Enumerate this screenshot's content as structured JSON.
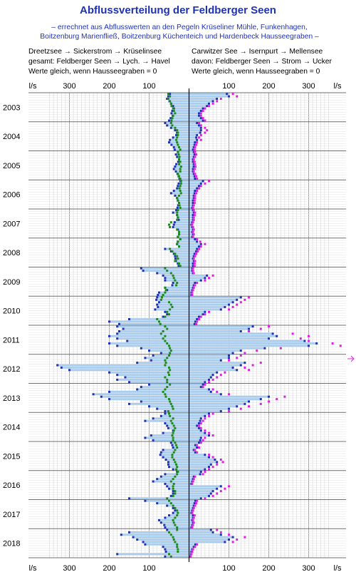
{
  "chart_data": {
    "type": "bar",
    "title": "Abflussverteilung der Feldberger Seen",
    "subtitle_lines": [
      "– errechnet aus Abflusswerten an den Pegeln Krüseliner Mühle, Funkenhagen,",
      "Boitzenburg Marienfließ, Boitzenburg Küchenteich und Hardenbeck Hausseegraben –"
    ],
    "legend_left": [
      {
        "text": "Dreetzsee → Sickerstrom → Krüselinsee",
        "color": "#1a8a1a"
      },
      {
        "text": "gesamt: Feldberger Seen → Lych. → Havel",
        "color": "#1f32b4"
      },
      {
        "text": "Werte gleich, wenn Hausseegraben = 0",
        "color": "#1f5f7a"
      }
    ],
    "legend_right": [
      {
        "text": "Carwitzer See → Isernpurt → Mellensee",
        "color": "#e020e0"
      },
      {
        "text": "davon: Feldberger Seen → Strom → Ucker",
        "color": "#1f32b4"
      },
      {
        "text": "Werte gleich, wenn Hausseegraben = 0",
        "color": "#4b10b4"
      }
    ],
    "axis_unit": "l/s",
    "x_tick_labels_left": [
      "300",
      "200",
      "100"
    ],
    "x_tick_values_left": [
      300,
      200,
      100
    ],
    "x_tick_labels_right": [
      "100",
      "200",
      "300"
    ],
    "x_tick_values_right": [
      100,
      200,
      300
    ],
    "xlim": [
      -350,
      350
    ],
    "years": [
      "2003",
      "2004",
      "2005",
      "2006",
      "2007",
      "2008",
      "2009",
      "2010",
      "2011",
      "2012",
      "2013",
      "2014",
      "2015",
      "2016",
      "2017",
      "2018"
    ],
    "months_per_year": 12,
    "grid": true,
    "colors": {
      "bar": "#a9cdee",
      "lych_total": "#1f32b4",
      "krueselinsee": "#1a8a1a",
      "mellensee": "#e020e0",
      "ucker": "#1f32b4",
      "equal_left": "#1f5f7a",
      "equal_right": "#4b10b4"
    },
    "series": [
      {
        "name": "gesamt: Feldberger Seen → Lych. → Havel",
        "values": [
          48,
          52,
          55,
          49,
          45,
          40,
          38,
          42,
          44,
          41,
          46,
          50,
          60,
          55,
          45,
          35,
          30,
          32,
          40,
          48,
          50,
          44,
          38,
          36,
          28,
          33,
          30,
          25,
          27,
          32,
          35,
          38,
          33,
          29,
          26,
          24,
          22,
          26,
          28,
          30,
          38,
          45,
          35,
          30,
          28,
          25,
          27,
          29,
          32,
          40,
          30,
          28,
          26,
          36,
          38,
          40,
          28,
          25,
          25,
          28,
          22,
          28,
          30,
          25,
          60,
          45,
          38,
          35,
          34,
          33,
          28,
          26,
          120,
          115,
          80,
          65,
          60,
          60,
          40,
          42,
          60,
          55,
          75,
          78,
          80,
          82,
          75,
          80,
          78,
          85,
          60,
          55,
          65,
          150,
          200,
          175,
          180,
          165,
          175,
          180,
          200,
          180,
          155,
          200,
          180,
          120,
          100,
          70,
          90,
          110,
          95,
          130,
          330,
          320,
          300,
          200,
          180,
          160,
          180,
          150,
          100,
          120,
          130,
          200,
          240,
          220,
          200,
          120,
          150,
          100,
          80,
          60,
          60,
          70,
          90,
          110,
          60,
          55,
          52,
          40,
          65,
          95,
          110,
          90,
          45,
          42,
          40,
          65,
          70,
          72,
          65,
          58,
          52,
          52,
          50,
          40,
          30,
          60,
          70,
          80,
          90,
          60,
          55,
          50,
          40,
          40,
          45,
          150,
          110,
          80,
          55,
          40,
          35,
          40,
          50,
          60,
          75,
          70,
          62,
          60,
          55,
          150,
          170,
          140,
          130,
          115,
          110,
          65,
          60,
          58,
          180,
          60,
          150,
          120,
          120,
          70
        ]
      },
      {
        "name": "Dreetzsee → Sickerstrom → Krüselinsee",
        "values": [
          52,
          48,
          52,
          48,
          45,
          44,
          40,
          38,
          35,
          40,
          42,
          44,
          45,
          42,
          35,
          30,
          28,
          28,
          30,
          32,
          30,
          28,
          25,
          22,
          28,
          26,
          24,
          25,
          22,
          25,
          20,
          22,
          22,
          28,
          25,
          22,
          20,
          20,
          22,
          24,
          22,
          20,
          25,
          30,
          28,
          25,
          24,
          22,
          28,
          30,
          30,
          28,
          30,
          45,
          50,
          48,
          30,
          25,
          25,
          28,
          22,
          28,
          30,
          25,
          48,
          42,
          35,
          30,
          28,
          35,
          25,
          22,
          60,
          55,
          45,
          40,
          38,
          35,
          30,
          32,
          60,
          58,
          60,
          65,
          68,
          70,
          50,
          45,
          42,
          48,
          55,
          50,
          60,
          80,
          75,
          72,
          60,
          55,
          65,
          70,
          60,
          65,
          60,
          55,
          50,
          48,
          45,
          48,
          50,
          55,
          60,
          58,
          60,
          50,
          48,
          52,
          50,
          60,
          55,
          55,
          48,
          55,
          60,
          65,
          60,
          58,
          50,
          48,
          45,
          42,
          40,
          52,
          50,
          48,
          40,
          45,
          42,
          38,
          35,
          38,
          40,
          42,
          40,
          40,
          35,
          32,
          30,
          35,
          38,
          42,
          42,
          38,
          35,
          32,
          30,
          32,
          28,
          30,
          35,
          40,
          45,
          38,
          40,
          40,
          35,
          35,
          40,
          55,
          50,
          45,
          40,
          35,
          30,
          28,
          30,
          35,
          40,
          38,
          35,
          30,
          30,
          50,
          45,
          40,
          38,
          35,
          30,
          30,
          28,
          28,
          50,
          45,
          40,
          38,
          35,
          30
        ]
      },
      {
        "name": "Carwitzer See → Isernpurt → Mellensee",
        "values": [
          110,
          120,
          80,
          70,
          60,
          50,
          40,
          35,
          30,
          30,
          35,
          40,
          25,
          30,
          40,
          45,
          40,
          30,
          25,
          30,
          20,
          18,
          15,
          14,
          15,
          18,
          15,
          12,
          14,
          15,
          16,
          14,
          12,
          15,
          18,
          20,
          50,
          40,
          30,
          25,
          20,
          18,
          15,
          15,
          14,
          14,
          12,
          10,
          12,
          15,
          14,
          12,
          12,
          10,
          8,
          10,
          12,
          10,
          12,
          10,
          20,
          28,
          40,
          30,
          25,
          22,
          18,
          15,
          12,
          15,
          14,
          14,
          10,
          10,
          12,
          60,
          50,
          40,
          20,
          15,
          12,
          10,
          8,
          8,
          150,
          140,
          130,
          120,
          110,
          100,
          50,
          40,
          30,
          25,
          20,
          18,
          200,
          180,
          150,
          260,
          300,
          280,
          300,
          360,
          380,
          230,
          170,
          140,
          130,
          120,
          100,
          180,
          160,
          140,
          150,
          90,
          80,
          70,
          60,
          50,
          40,
          35,
          60,
          70,
          100,
          240,
          220,
          200,
          180,
          150,
          130,
          100,
          60,
          50,
          40,
          35,
          30,
          25,
          30,
          40,
          50,
          60,
          40,
          35,
          30,
          20,
          25,
          15,
          20,
          50,
          60,
          80,
          85,
          70,
          60,
          50,
          40,
          35,
          15,
          12,
          10,
          8,
          100,
          90,
          80,
          70,
          60,
          40,
          20,
          18,
          15,
          12,
          10,
          8,
          14,
          12,
          10,
          12,
          10,
          8,
          70,
          80,
          100,
          140,
          120,
          110,
          20,
          15,
          10,
          8,
          6,
          4
        ]
      },
      {
        "name": "davon: Feldberger Seen → Strom → Ucker",
        "values": [
          95,
          100,
          70,
          60,
          50,
          45,
          35,
          30,
          25,
          25,
          30,
          35,
          20,
          25,
          30,
          30,
          28,
          20,
          18,
          20,
          15,
          14,
          12,
          10,
          12,
          14,
          12,
          10,
          10,
          12,
          12,
          10,
          10,
          12,
          14,
          15,
          35,
          30,
          25,
          20,
          15,
          14,
          12,
          12,
          10,
          10,
          10,
          8,
          10,
          12,
          10,
          10,
          10,
          8,
          6,
          8,
          10,
          8,
          10,
          8,
          15,
          20,
          30,
          25,
          20,
          18,
          14,
          12,
          10,
          12,
          10,
          10,
          8,
          8,
          10,
          45,
          40,
          30,
          15,
          12,
          10,
          8,
          6,
          6,
          130,
          120,
          110,
          100,
          90,
          80,
          40,
          35,
          25,
          20,
          16,
          14,
          160,
          150,
          130,
          210,
          220,
          200,
          290,
          320,
          300,
          190,
          130,
          110,
          100,
          100,
          80,
          140,
          130,
          110,
          120,
          70,
          60,
          55,
          50,
          40,
          35,
          30,
          50,
          55,
          80,
          200,
          180,
          150,
          140,
          120,
          100,
          80,
          50,
          40,
          30,
          28,
          25,
          20,
          25,
          30,
          40,
          50,
          30,
          28,
          25,
          16,
          20,
          12,
          16,
          40,
          50,
          65,
          70,
          55,
          50,
          40,
          30,
          28,
          12,
          10,
          8,
          6,
          80,
          70,
          60,
          55,
          50,
          30,
          16,
          14,
          12,
          10,
          8,
          6,
          10,
          10,
          8,
          10,
          8,
          6,
          55,
          60,
          80,
          110,
          100,
          90,
          16,
          12,
          8,
          6,
          5,
          3
        ]
      }
    ]
  }
}
